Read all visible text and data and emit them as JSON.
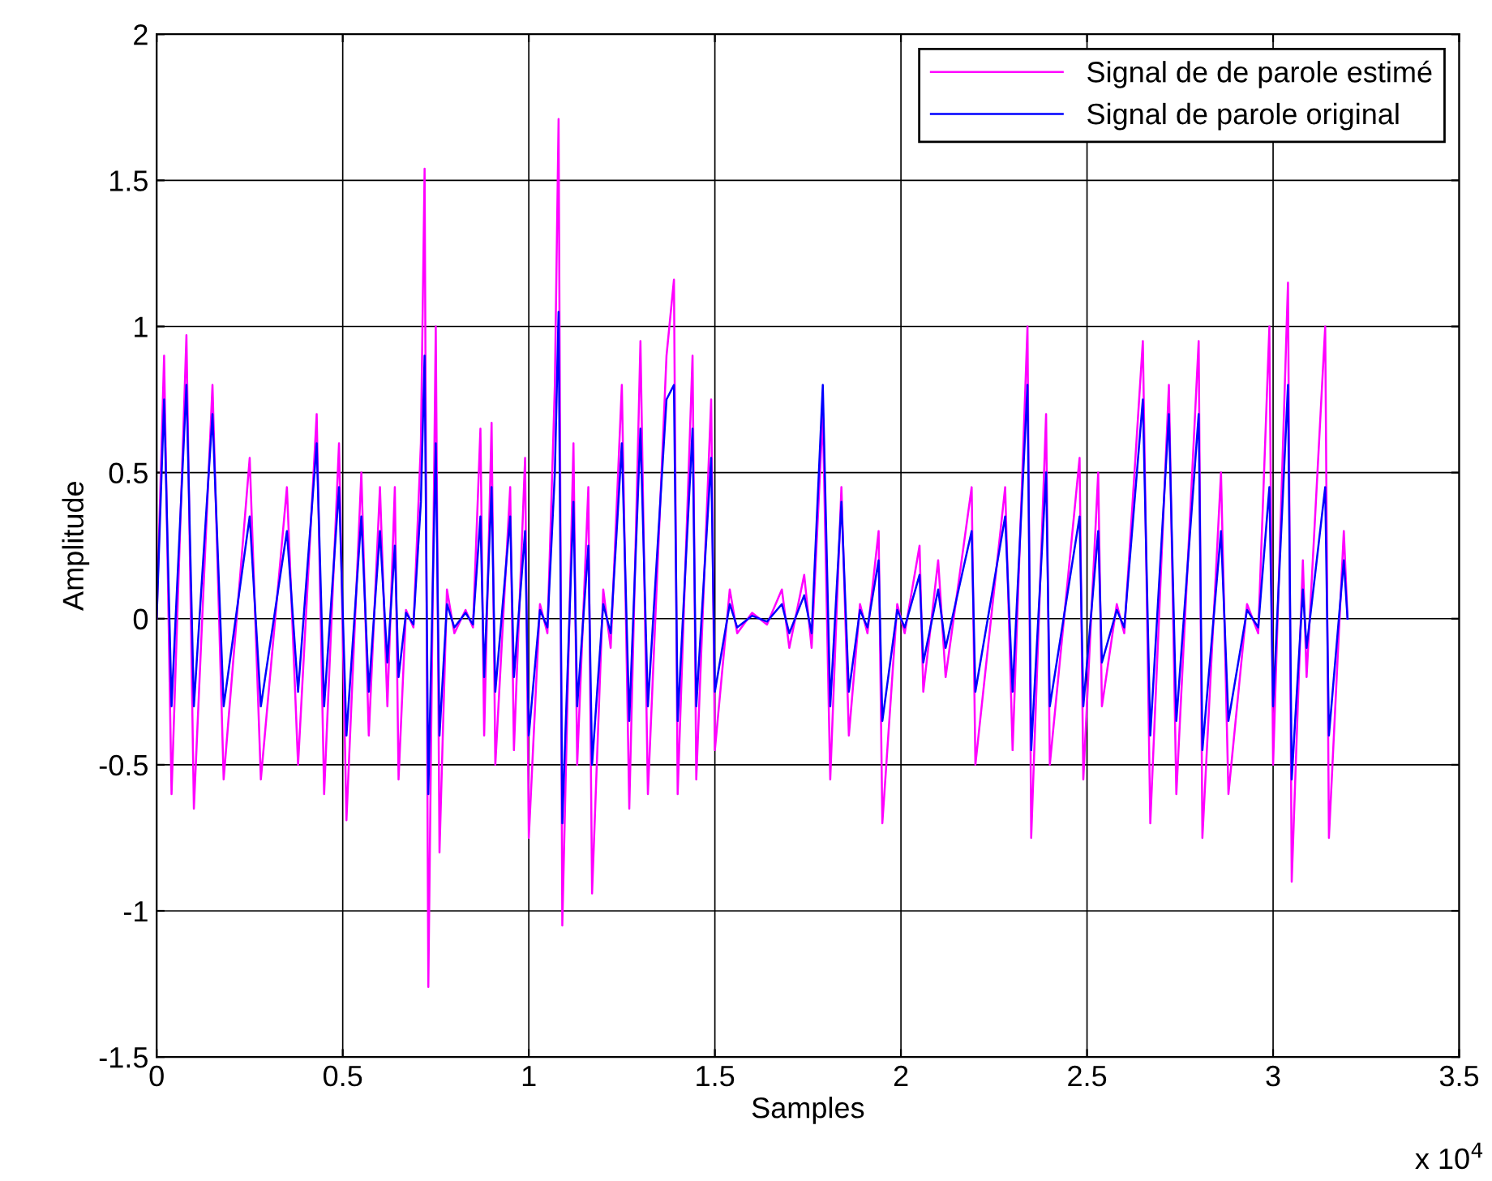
{
  "chart_data": {
    "type": "line",
    "xlabel": "Samples",
    "ylabel": "Amplitude",
    "annotations": [
      "x 10$^{4}$"
    ],
    "x": [
      0,
      0.02,
      0.04,
      0.08,
      0.1,
      0.15,
      0.18,
      0.25,
      0.28,
      0.35,
      0.38,
      0.43,
      0.45,
      0.49,
      0.51,
      0.55,
      0.57,
      0.6,
      0.62,
      0.64,
      0.65,
      0.67,
      0.69,
      0.71,
      0.72,
      0.73,
      0.75,
      0.76,
      0.78,
      0.8,
      0.83,
      0.85,
      0.87,
      0.88,
      0.9,
      0.91,
      0.95,
      0.96,
      0.99,
      1.0,
      1.03,
      1.05,
      1.07,
      1.08,
      1.09,
      1.12,
      1.13,
      1.16,
      1.17,
      1.2,
      1.22,
      1.25,
      1.27,
      1.3,
      1.32,
      1.37,
      1.39,
      1.4,
      1.44,
      1.45,
      1.49,
      1.5,
      1.54,
      1.56,
      1.6,
      1.64,
      1.68,
      1.7,
      1.74,
      1.76,
      1.79,
      1.81,
      1.84,
      1.86,
      1.89,
      1.91,
      1.94,
      1.95,
      1.99,
      2.01,
      2.05,
      2.06,
      2.1,
      2.12,
      2.19,
      2.2,
      2.28,
      2.3,
      2.34,
      2.35,
      2.39,
      2.4,
      2.48,
      2.49,
      2.53,
      2.54,
      2.58,
      2.6,
      2.65,
      2.67,
      2.72,
      2.74,
      2.8,
      2.81,
      2.86,
      2.88,
      2.93,
      2.96,
      2.99,
      3.0,
      3.04,
      3.05,
      3.08,
      3.09,
      3.14,
      3.15,
      3.19,
      3.2
    ],
    "series": [
      {
        "name": "Signal de de parole estimé",
        "color": "#ff00ff",
        "values": [
          0,
          0.9,
          -0.6,
          0.97,
          -0.65,
          0.8,
          -0.55,
          0.55,
          -0.55,
          0.45,
          -0.5,
          0.7,
          -0.6,
          0.6,
          -0.69,
          0.5,
          -0.4,
          0.45,
          -0.3,
          0.45,
          -0.55,
          0.03,
          -0.03,
          0.6,
          1.54,
          -1.26,
          1.0,
          -0.8,
          0.1,
          -0.05,
          0.03,
          -0.03,
          0.65,
          -0.4,
          0.67,
          -0.5,
          0.45,
          -0.45,
          0.55,
          -0.75,
          0.05,
          -0.05,
          0.8,
          1.71,
          -1.05,
          0.6,
          -0.5,
          0.45,
          -0.94,
          0.1,
          -0.1,
          0.8,
          -0.65,
          0.95,
          -0.6,
          0.9,
          1.16,
          -0.6,
          0.9,
          -0.55,
          0.75,
          -0.45,
          0.1,
          -0.05,
          0.02,
          -0.02,
          0.1,
          -0.1,
          0.15,
          -0.1,
          0.7,
          -0.55,
          0.45,
          -0.4,
          0.05,
          -0.05,
          0.3,
          -0.7,
          0.05,
          -0.05,
          0.25,
          -0.25,
          0.2,
          -0.2,
          0.45,
          -0.5,
          0.45,
          -0.45,
          1.0,
          -0.75,
          0.7,
          -0.5,
          0.55,
          -0.55,
          0.5,
          -0.3,
          0.05,
          -0.05,
          0.95,
          -0.7,
          0.8,
          -0.6,
          0.95,
          -0.75,
          0.5,
          -0.6,
          0.05,
          -0.05,
          1.0,
          -0.5,
          1.15,
          -0.9,
          0.2,
          -0.2,
          1.0,
          -0.75,
          0.3,
          0
        ]
      },
      {
        "name": "Signal de parole original",
        "color": "#0000ff",
        "values": [
          0,
          0.75,
          -0.3,
          0.8,
          -0.3,
          0.7,
          -0.3,
          0.35,
          -0.3,
          0.3,
          -0.25,
          0.6,
          -0.3,
          0.45,
          -0.4,
          0.35,
          -0.25,
          0.3,
          -0.15,
          0.25,
          -0.2,
          0.02,
          -0.02,
          0.4,
          0.9,
          -0.6,
          0.6,
          -0.4,
          0.05,
          -0.03,
          0.02,
          -0.02,
          0.35,
          -0.2,
          0.45,
          -0.25,
          0.35,
          -0.2,
          0.3,
          -0.4,
          0.03,
          -0.03,
          0.5,
          1.05,
          -0.7,
          0.4,
          -0.3,
          0.25,
          -0.5,
          0.05,
          -0.05,
          0.6,
          -0.35,
          0.65,
          -0.3,
          0.75,
          0.8,
          -0.35,
          0.65,
          -0.3,
          0.55,
          -0.25,
          0.05,
          -0.03,
          0.01,
          -0.01,
          0.05,
          -0.05,
          0.08,
          -0.05,
          0.8,
          -0.3,
          0.4,
          -0.25,
          0.03,
          -0.03,
          0.2,
          -0.35,
          0.03,
          -0.03,
          0.15,
          -0.15,
          0.1,
          -0.1,
          0.3,
          -0.25,
          0.35,
          -0.25,
          0.8,
          -0.45,
          0.5,
          -0.3,
          0.35,
          -0.3,
          0.3,
          -0.15,
          0.03,
          -0.03,
          0.75,
          -0.4,
          0.7,
          -0.35,
          0.7,
          -0.45,
          0.3,
          -0.35,
          0.03,
          -0.03,
          0.45,
          -0.3,
          0.8,
          -0.55,
          0.1,
          -0.1,
          0.45,
          -0.4,
          0.2,
          0
        ]
      }
    ],
    "xlim": [
      0,
      3.5
    ],
    "ylim": [
      -1.5,
      2
    ],
    "xticks": [
      0,
      0.5,
      1,
      1.5,
      2,
      2.5,
      3,
      3.5
    ],
    "yticks": [
      -1.5,
      -1,
      -0.5,
      0,
      0.5,
      1,
      1.5,
      2
    ],
    "grid": true,
    "legend": "top right",
    "marker": "none",
    "line_style": "solid"
  }
}
